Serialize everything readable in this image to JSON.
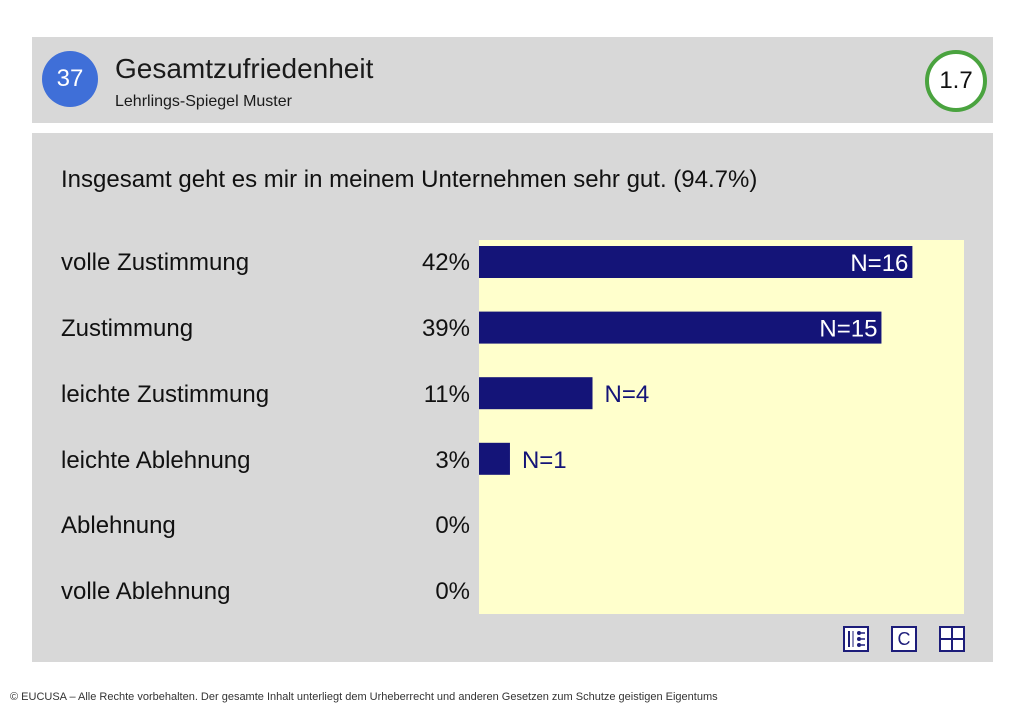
{
  "header": {
    "number": "37",
    "title": "Gesamtzufriedenheit",
    "subtitle": "Lehrlings-Spiegel Muster",
    "score": "1.7"
  },
  "question": "Insgesamt geht es mir in meinem Unternehmen sehr gut. (94.7%)",
  "colors": {
    "bar": "#141478",
    "plot_bg": "#ffffcc",
    "panel_bg": "#d8d8d8",
    "number_badge": "#3f6fd8",
    "score_ring": "#4aa33f"
  },
  "chart_data": {
    "type": "bar",
    "orientation": "horizontal",
    "categories": [
      "volle Zustimmung",
      "Zustimmung",
      "leichte Zustimmung",
      "leichte Ablehnung",
      "Ablehnung",
      "volle Ablehnung"
    ],
    "percent_labels": [
      "42%",
      "39%",
      "11%",
      "3%",
      "0%",
      "0%"
    ],
    "values": [
      42,
      39,
      11,
      3,
      0,
      0
    ],
    "counts": [
      16,
      15,
      4,
      1,
      0,
      0
    ],
    "count_labels": [
      "N=16",
      "N=15",
      "N=4",
      "N=1",
      "",
      ""
    ],
    "xlim": [
      0,
      47
    ],
    "grid": false,
    "legend": "none"
  },
  "toolbar": {
    "icons": [
      "list-icon",
      "c-icon",
      "grid-icon"
    ],
    "c_label": "C"
  },
  "footer": "© EUCUSA – Alle Rechte vorbehalten. Der gesamte Inhalt unterliegt dem Urheberrecht und anderen Gesetzen zum Schutze geistigen Eigentums"
}
